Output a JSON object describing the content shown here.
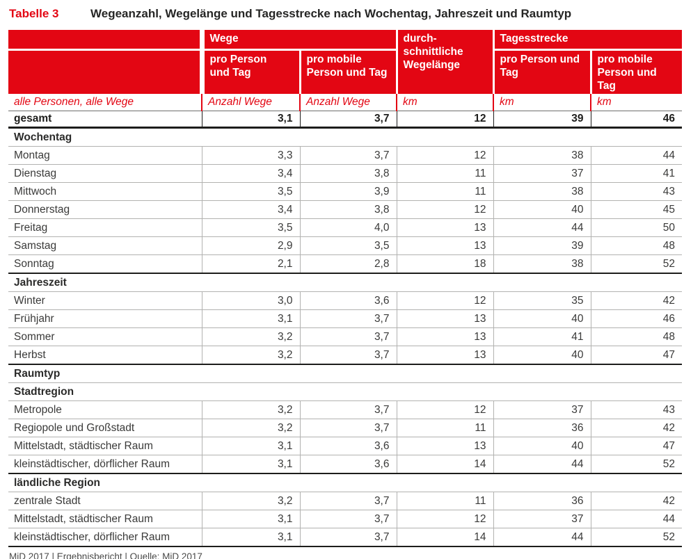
{
  "title": {
    "label": "Tabelle 3",
    "text": "Wegeanzahl, Wegelänge und Tagesstrecke nach Wochentag, Jahreszeit und Raumtyp"
  },
  "colors": {
    "brand_red": "#e30613",
    "text": "#3a3a39",
    "light_line": "#b2b2b0",
    "dark_line": "#1d1d1b"
  },
  "table": {
    "header": {
      "wege": {
        "label": "Wege",
        "sub": [
          "pro Person\nund Tag",
          "pro mobile\nPerson und Tag"
        ]
      },
      "avg": {
        "label": "durch-\nschnittliche\nWegelänge"
      },
      "tagesstrecke": {
        "label": "Tagesstrecke",
        "sub": [
          "pro Person und\nTag",
          "pro mobile\nPerson und Tag"
        ]
      }
    },
    "units_row": {
      "label": "alle Personen, alle Wege",
      "units": [
        "Anzahl Wege",
        "Anzahl Wege",
        "km",
        "km",
        "km"
      ]
    },
    "total_row": {
      "label": "gesamt",
      "values": [
        "3,1",
        "3,7",
        "12",
        "39",
        "46"
      ]
    },
    "sections": [
      {
        "heading": "Wochentag",
        "end_line": true,
        "rows": [
          [
            "Montag",
            "3,3",
            "3,7",
            "12",
            "38",
            "44"
          ],
          [
            "Dienstag",
            "3,4",
            "3,8",
            "11",
            "37",
            "41"
          ],
          [
            "Mittwoch",
            "3,5",
            "3,9",
            "11",
            "38",
            "43"
          ],
          [
            "Donnerstag",
            "3,4",
            "3,8",
            "12",
            "40",
            "45"
          ],
          [
            "Freitag",
            "3,5",
            "4,0",
            "13",
            "44",
            "50"
          ],
          [
            "Samstag",
            "2,9",
            "3,5",
            "13",
            "39",
            "48"
          ],
          [
            "Sonntag",
            "2,1",
            "2,8",
            "18",
            "38",
            "52"
          ]
        ]
      },
      {
        "heading": "Jahreszeit",
        "end_line": true,
        "rows": [
          [
            "Winter",
            "3,0",
            "3,6",
            "12",
            "35",
            "42"
          ],
          [
            "Frühjahr",
            "3,1",
            "3,7",
            "13",
            "40",
            "46"
          ],
          [
            "Sommer",
            "3,2",
            "3,7",
            "13",
            "41",
            "48"
          ],
          [
            "Herbst",
            "3,2",
            "3,7",
            "13",
            "40",
            "47"
          ]
        ]
      },
      {
        "heading": "Raumtyp",
        "end_line": false,
        "rows": []
      },
      {
        "heading": "Stadtregion",
        "end_line": true,
        "rows": [
          [
            "Metropole",
            "3,2",
            "3,7",
            "12",
            "37",
            "43"
          ],
          [
            "Regiopole und Großstadt",
            "3,2",
            "3,7",
            "11",
            "36",
            "42"
          ],
          [
            "Mittelstadt, städtischer Raum",
            "3,1",
            "3,6",
            "13",
            "40",
            "47"
          ],
          [
            "kleinstädtischer, dörflicher Raum",
            "3,1",
            "3,6",
            "14",
            "44",
            "52"
          ]
        ]
      },
      {
        "heading": "ländliche Region",
        "end_line": true,
        "rows": [
          [
            "zentrale Stadt",
            "3,2",
            "3,7",
            "11",
            "36",
            "42"
          ],
          [
            "Mittelstadt, städtischer Raum",
            "3,1",
            "3,7",
            "12",
            "37",
            "44"
          ],
          [
            "kleinstädtischer, dörflicher Raum",
            "3,1",
            "3,7",
            "14",
            "44",
            "52"
          ]
        ]
      }
    ]
  },
  "footer": {
    "text": "MiD 2017 | Ergebnisbericht | Quelle: MiD 2017"
  },
  "chart_data": {
    "type": "table",
    "title": "Tabelle 3 – Wegeanzahl, Wegelänge und Tagesstrecke nach Wochentag, Jahreszeit und Raumtyp",
    "columns": [
      "Kategorie (alle Personen, alle Wege)",
      "Wege pro Person und Tag (Anzahl Wege)",
      "Wege pro mobile Person und Tag (Anzahl Wege)",
      "durchschnittliche Wegelänge (km)",
      "Tagesstrecke pro Person und Tag (km)",
      "Tagesstrecke pro mobile Person und Tag (km)"
    ],
    "rows": [
      {
        "group": "gesamt",
        "label": "gesamt",
        "values": [
          3.1,
          3.7,
          12,
          39,
          46
        ]
      },
      {
        "group": "Wochentag",
        "label": "Montag",
        "values": [
          3.3,
          3.7,
          12,
          38,
          44
        ]
      },
      {
        "group": "Wochentag",
        "label": "Dienstag",
        "values": [
          3.4,
          3.8,
          11,
          37,
          41
        ]
      },
      {
        "group": "Wochentag",
        "label": "Mittwoch",
        "values": [
          3.5,
          3.9,
          11,
          38,
          43
        ]
      },
      {
        "group": "Wochentag",
        "label": "Donnerstag",
        "values": [
          3.4,
          3.8,
          12,
          40,
          45
        ]
      },
      {
        "group": "Wochentag",
        "label": "Freitag",
        "values": [
          3.5,
          4.0,
          13,
          44,
          50
        ]
      },
      {
        "group": "Wochentag",
        "label": "Samstag",
        "values": [
          2.9,
          3.5,
          13,
          39,
          48
        ]
      },
      {
        "group": "Wochentag",
        "label": "Sonntag",
        "values": [
          2.1,
          2.8,
          18,
          38,
          52
        ]
      },
      {
        "group": "Jahreszeit",
        "label": "Winter",
        "values": [
          3.0,
          3.6,
          12,
          35,
          42
        ]
      },
      {
        "group": "Jahreszeit",
        "label": "Frühjahr",
        "values": [
          3.1,
          3.7,
          13,
          40,
          46
        ]
      },
      {
        "group": "Jahreszeit",
        "label": "Sommer",
        "values": [
          3.2,
          3.7,
          13,
          41,
          48
        ]
      },
      {
        "group": "Jahreszeit",
        "label": "Herbst",
        "values": [
          3.2,
          3.7,
          13,
          40,
          47
        ]
      },
      {
        "group": "Raumtyp / Stadtregion",
        "label": "Metropole",
        "values": [
          3.2,
          3.7,
          12,
          37,
          43
        ]
      },
      {
        "group": "Raumtyp / Stadtregion",
        "label": "Regiopole und Großstadt",
        "values": [
          3.2,
          3.7,
          11,
          36,
          42
        ]
      },
      {
        "group": "Raumtyp / Stadtregion",
        "label": "Mittelstadt, städtischer Raum",
        "values": [
          3.1,
          3.6,
          13,
          40,
          47
        ]
      },
      {
        "group": "Raumtyp / Stadtregion",
        "label": "kleinstädtischer, dörflicher Raum",
        "values": [
          3.1,
          3.6,
          14,
          44,
          52
        ]
      },
      {
        "group": "Raumtyp / ländliche Region",
        "label": "zentrale Stadt",
        "values": [
          3.2,
          3.7,
          11,
          36,
          42
        ]
      },
      {
        "group": "Raumtyp / ländliche Region",
        "label": "Mittelstadt, städtischer Raum",
        "values": [
          3.1,
          3.7,
          12,
          37,
          44
        ]
      },
      {
        "group": "Raumtyp / ländliche Region",
        "label": "kleinstädtischer, dörflicher Raum",
        "values": [
          3.1,
          3.7,
          14,
          44,
          52
        ]
      }
    ]
  }
}
